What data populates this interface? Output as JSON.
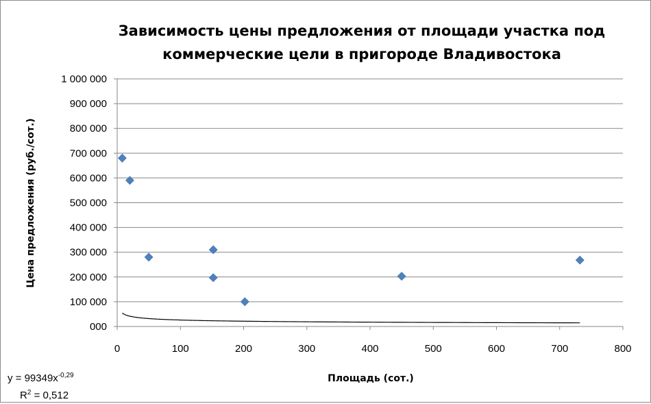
{
  "chart_data": {
    "type": "scatter",
    "title_lines": [
      "Зависимость цены предложения от площади участка под",
      "коммерческие цели в пригороде Владивостока"
    ],
    "xlabel": "Площадь (сот.)",
    "ylabel": "Цена предложения (руб./сот.)",
    "xlim": [
      0,
      800
    ],
    "ylim": [
      0,
      1000000
    ],
    "x_ticks": [
      0,
      100,
      200,
      300,
      400,
      500,
      600,
      700,
      800
    ],
    "x_tick_labels": [
      "0",
      "100",
      "200",
      "300",
      "400",
      "500",
      "600",
      "700",
      "800"
    ],
    "y_ticks": [
      0,
      100000,
      200000,
      300000,
      400000,
      500000,
      600000,
      700000,
      800000,
      900000,
      1000000
    ],
    "y_tick_labels": [
      "000",
      "100 000",
      "200 000",
      "300 000",
      "400 000",
      "500 000",
      "600 000",
      "700 000",
      "800 000",
      "900 000",
      "1 000 000"
    ],
    "grid": "horizontal",
    "legend": "none",
    "points": [
      {
        "x": 8,
        "y": 680000
      },
      {
        "x": 20,
        "y": 590000
      },
      {
        "x": 50,
        "y": 280000
      },
      {
        "x": 152,
        "y": 310000
      },
      {
        "x": 152,
        "y": 197000
      },
      {
        "x": 202,
        "y": 100000
      },
      {
        "x": 450,
        "y": 203000
      },
      {
        "x": 732,
        "y": 268000
      }
    ],
    "trendline": {
      "type": "power",
      "coefficient": 99349,
      "exponent": -0.29,
      "x_range": [
        8,
        732
      ],
      "equation_prefix": "y = 99349x",
      "equation_exponent": "-0,29",
      "r2_prefix": "R",
      "r2_suffix": " = 0,512"
    },
    "colors": {
      "marker": "#4f81bd",
      "trendline": "#000000",
      "grid": "#878787",
      "axis": "#878787"
    }
  }
}
